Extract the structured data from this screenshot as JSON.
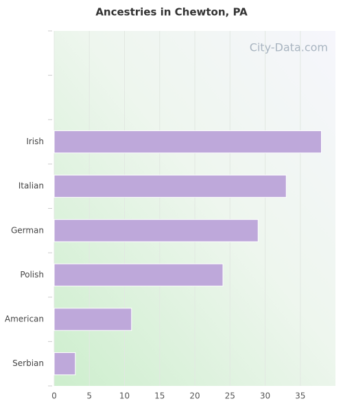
{
  "chart_data": {
    "type": "hbar",
    "title": "Ancestries in Chewton, PA",
    "watermark": "City-Data.com",
    "categories": [
      null,
      null,
      "Irish",
      "Italian",
      "German",
      "Polish",
      "American",
      "Serbian"
    ],
    "values": [
      null,
      null,
      38,
      33,
      29,
      24,
      11,
      3
    ],
    "color": "#bea8da",
    "xlim": [
      0,
      40
    ],
    "xticks": [
      0,
      5,
      10,
      15,
      20,
      25,
      30,
      35
    ],
    "grid": true
  }
}
